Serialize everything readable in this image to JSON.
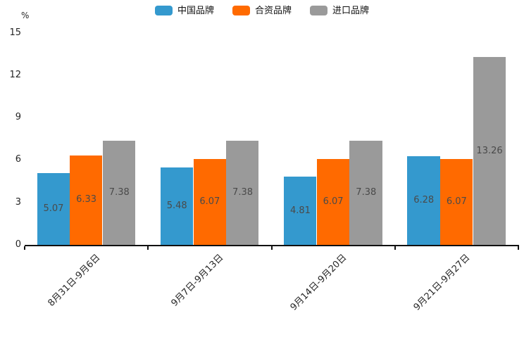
{
  "chart_data": {
    "type": "bar",
    "title": "",
    "xlabel": "",
    "ylabel": "%",
    "categories": [
      "8月31日-9月6日",
      "9月7日-9月13日",
      "9月14日-9月20日",
      "9月21日-9月27日"
    ],
    "series": [
      {
        "name": "中国品牌",
        "color": "#3499CE",
        "values": [
          5.07,
          5.48,
          4.81,
          6.28
        ]
      },
      {
        "name": "合资品牌",
        "color": "#FF6A00",
        "values": [
          6.33,
          6.07,
          6.07,
          6.07
        ]
      },
      {
        "name": "进口品牌",
        "color": "#9A9A9A",
        "values": [
          7.38,
          7.38,
          7.38,
          13.26
        ]
      }
    ],
    "ylim": [
      0,
      15
    ],
    "yticks": [
      0,
      3,
      6,
      9,
      12,
      15
    ],
    "legend_position": "top-center",
    "grid": false,
    "bar_labels_inside": true,
    "xtick_rotation_deg": 45,
    "colors": {
      "axis": "#111111",
      "bar_label_text": "#4a4a4a",
      "tick_text": "#262626"
    }
  }
}
